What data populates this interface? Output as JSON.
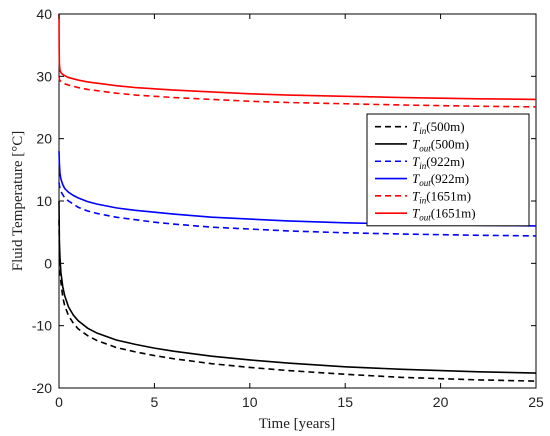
{
  "chart_data": {
    "type": "line",
    "xlabel": "Time [years]",
    "ylabel": "Fluid Temperature [°C]",
    "xlim": [
      0,
      25
    ],
    "ylim": [
      -20,
      40
    ],
    "xticks": [
      0,
      5,
      10,
      15,
      20,
      25
    ],
    "yticks": [
      -20,
      -10,
      0,
      10,
      20,
      30,
      40
    ],
    "grid": false,
    "legend_position": "right-center",
    "series": [
      {
        "name": "T_in(500m)",
        "legend": {
          "symbol": "T",
          "sub": "in",
          "suffix": "(500m)"
        },
        "color": "#000000",
        "dash": true,
        "x": [
          0,
          0.02,
          0.05,
          0.1,
          0.2,
          0.3,
          0.5,
          0.75,
          1,
          1.5,
          2,
          3,
          4,
          5,
          6,
          8,
          10,
          12,
          15,
          18,
          20,
          22,
          25
        ],
        "y": [
          7,
          1.5,
          -1,
          -3,
          -5.5,
          -6.8,
          -8.4,
          -9.6,
          -10.5,
          -11.6,
          -12.4,
          -13.5,
          -14.2,
          -14.8,
          -15.3,
          -16.1,
          -16.7,
          -17.2,
          -17.8,
          -18.3,
          -18.5,
          -18.7,
          -18.9
        ]
      },
      {
        "name": "T_out(500m)",
        "legend": {
          "symbol": "T",
          "sub": "out",
          "suffix": "(500m)"
        },
        "color": "#000000",
        "dash": false,
        "x": [
          0,
          0.02,
          0.05,
          0.1,
          0.2,
          0.3,
          0.5,
          0.75,
          1,
          1.5,
          2,
          3,
          4,
          5,
          6,
          8,
          10,
          12,
          15,
          18,
          20,
          22,
          25
        ],
        "y": [
          10,
          3.5,
          1,
          -1.5,
          -3.8,
          -5.2,
          -7,
          -8.3,
          -9.2,
          -10.4,
          -11.2,
          -12.3,
          -13,
          -13.6,
          -14.1,
          -14.9,
          -15.5,
          -16,
          -16.6,
          -17,
          -17.2,
          -17.4,
          -17.6
        ]
      },
      {
        "name": "T_in(922m)",
        "legend": {
          "symbol": "T",
          "sub": "in",
          "suffix": "(922m)"
        },
        "color": "#0000ff",
        "dash": true,
        "x": [
          0,
          0.02,
          0.05,
          0.1,
          0.2,
          0.3,
          0.5,
          0.75,
          1,
          1.5,
          2,
          3,
          4,
          5,
          6,
          8,
          10,
          12,
          15,
          18,
          20,
          22,
          25
        ],
        "y": [
          13,
          12.5,
          12,
          11.5,
          11,
          10.5,
          10,
          9.5,
          9,
          8.4,
          8,
          7.4,
          7,
          6.6,
          6.3,
          5.8,
          5.5,
          5.2,
          4.9,
          4.7,
          4.6,
          4.5,
          4.4
        ]
      },
      {
        "name": "T_out(922m)",
        "legend": {
          "symbol": "T",
          "sub": "out",
          "suffix": "(922m)"
        },
        "color": "#0000ff",
        "dash": false,
        "x": [
          0,
          0.02,
          0.05,
          0.1,
          0.2,
          0.3,
          0.5,
          0.75,
          1,
          1.5,
          2,
          3,
          4,
          5,
          6,
          8,
          10,
          12,
          15,
          18,
          20,
          22,
          25
        ],
        "y": [
          18,
          16,
          14.5,
          13.5,
          12.6,
          12,
          11.4,
          10.9,
          10.5,
          9.9,
          9.5,
          8.9,
          8.5,
          8.2,
          7.9,
          7.4,
          7.1,
          6.8,
          6.5,
          6.3,
          6.2,
          6.1,
          6
        ]
      },
      {
        "name": "T_in(1651m)",
        "legend": {
          "symbol": "T",
          "sub": "in",
          "suffix": "(1651m)"
        },
        "color": "#ff0000",
        "dash": true,
        "x": [
          0,
          0.02,
          0.05,
          0.1,
          0.2,
          0.3,
          0.5,
          0.75,
          1,
          1.5,
          2,
          3,
          4,
          5,
          6,
          8,
          10,
          12,
          15,
          18,
          20,
          22,
          25
        ],
        "y": [
          30,
          29.5,
          29.3,
          29.2,
          29,
          28.8,
          28.6,
          28.4,
          28.2,
          27.9,
          27.7,
          27.3,
          27,
          26.8,
          26.6,
          26.3,
          26,
          25.8,
          25.6,
          25.4,
          25.3,
          25.2,
          25.1
        ]
      },
      {
        "name": "T_out(1651m)",
        "legend": {
          "symbol": "T",
          "sub": "out",
          "suffix": "(1651m)"
        },
        "color": "#ff0000",
        "dash": false,
        "x": [
          0,
          0.01,
          0.02,
          0.05,
          0.1,
          0.2,
          0.3,
          0.5,
          0.75,
          1,
          1.5,
          2,
          3,
          4,
          5,
          6,
          8,
          10,
          12,
          15,
          18,
          20,
          22,
          25
        ],
        "y": [
          40,
          34,
          32,
          31,
          30.6,
          30.3,
          30.1,
          29.8,
          29.6,
          29.4,
          29.1,
          28.9,
          28.5,
          28.2,
          28,
          27.8,
          27.5,
          27.2,
          27,
          26.8,
          26.6,
          26.5,
          26.4,
          26.3
        ]
      }
    ]
  }
}
